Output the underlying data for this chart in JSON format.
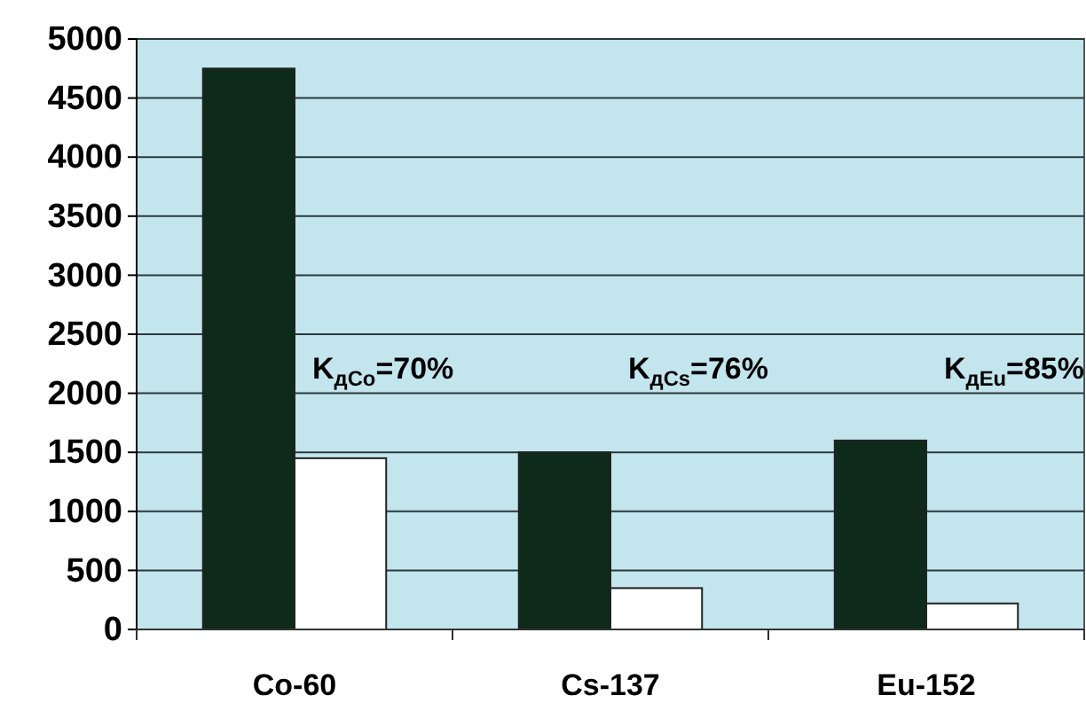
{
  "chart_data": {
    "type": "bar",
    "categories": [
      "Co-60",
      "Cs-137",
      "Eu-152"
    ],
    "series": [
      {
        "color": "#0d2a1a",
        "values": [
          4750,
          1500,
          1600
        ]
      },
      {
        "color": "#ffffff",
        "values": [
          1450,
          350,
          220
        ]
      }
    ],
    "ylim": [
      0,
      5000
    ],
    "yticks": [
      0,
      500,
      1000,
      1500,
      2000,
      2500,
      3000,
      3500,
      4000,
      4500,
      5000
    ],
    "grid": "y",
    "annotations": [
      "K$_{дCo}$=70%",
      "K$_{дCs}$=76%",
      "K$_{дEu}$=85%"
    ]
  }
}
